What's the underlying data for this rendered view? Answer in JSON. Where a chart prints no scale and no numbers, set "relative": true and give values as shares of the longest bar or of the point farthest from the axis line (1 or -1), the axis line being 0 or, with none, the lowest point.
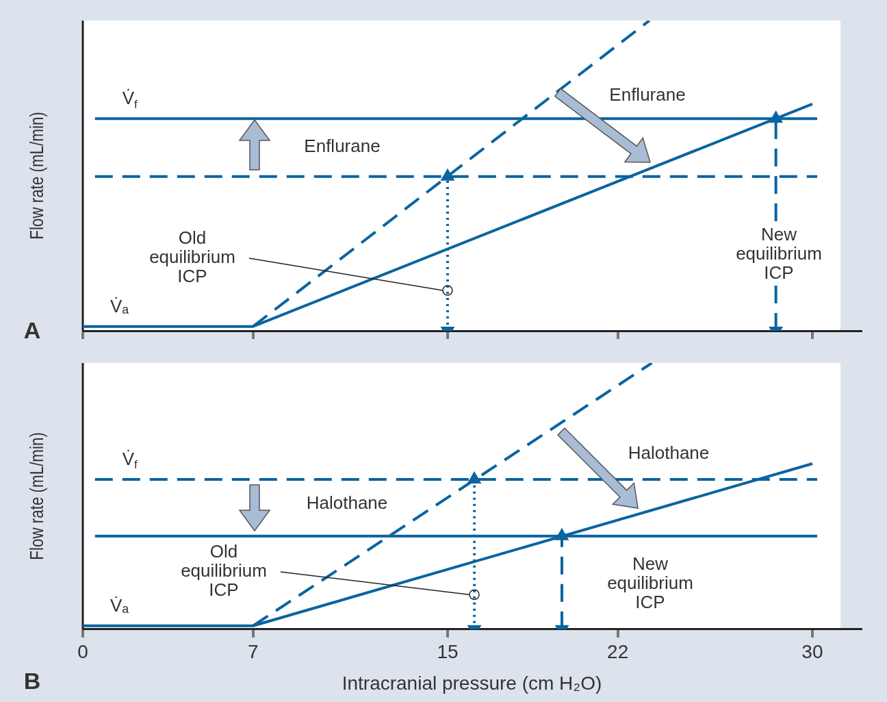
{
  "chart_data": [
    {
      "type": "line",
      "title": "A",
      "ylabel": "Flow rate (mL/min)",
      "relative": true,
      "xlim": [
        0,
        32
      ],
      "xticks": [
        0,
        7,
        15,
        22,
        30
      ],
      "tick_labels": false,
      "legend": false,
      "grid": false,
      "marker": "none",
      "series": [
        {
          "name": "V̇ₐ",
          "color": "#0a64a0",
          "x": [
            0,
            7,
            30
          ],
          "values": [
            0.014,
            0.014,
            0.731
          ],
          "line_style": "solid"
        },
        {
          "name": "V̇$_{f}$",
          "color": "#0a64a0",
          "x": [
            0.5,
            30.2
          ],
          "values": [
            0.684,
            0.684
          ],
          "line_style": "solid"
        },
        {
          "color": "#0a64a0",
          "x": [
            0.5,
            30.2
          ],
          "values": [
            0.497,
            0.497
          ],
          "line_style": "dashed"
        },
        {
          "color": "#0a64a0",
          "x": [
            7,
            23.3
          ],
          "values": [
            0.014,
            1
          ],
          "line_style": "dashed"
        },
        {
          "color": "#0a64a0",
          "x": [
            15,
            15
          ],
          "values": [
            0,
            0.497
          ],
          "line_style": "dotted",
          "marker": "triangle"
        },
        {
          "color": "#0a64a0",
          "x": [
            28.5,
            28.5
          ],
          "values": [
            0,
            0.684
          ],
          "line_style": "dashed",
          "marker": "triangle"
        }
      ],
      "annotations": [
        "Enflurane",
        "Enflurane",
        {
          "text": "Old equilibrium ICP",
          "x": 15,
          "y": 0.13
        },
        "New equilibrium ICP"
      ]
    },
    {
      "type": "line",
      "title": "B",
      "ylabel": "Flow rate (mL/min)",
      "xlabel": "Intracranial pressure (cm H₂O)",
      "relative": true,
      "xlim": [
        0,
        32
      ],
      "xticks": [
        0,
        7,
        15,
        22,
        30
      ],
      "tick_labels": "x",
      "legend": false,
      "grid": false,
      "marker": "none",
      "series": [
        {
          "name": "V̇ₐ",
          "color": "#0a64a0",
          "x": [
            0,
            7,
            30
          ],
          "values": [
            0.013,
            0.013,
            0.622
          ],
          "line_style": "solid"
        },
        {
          "name": "V̇$_{f}$",
          "color": "#0a64a0",
          "x": [
            0.5,
            30.2
          ],
          "values": [
            0.563,
            0.563
          ],
          "line_style": "dashed"
        },
        {
          "color": "#0a64a0",
          "x": [
            0.5,
            30.2
          ],
          "values": [
            0.35,
            0.35
          ],
          "line_style": "solid"
        },
        {
          "color": "#0a64a0",
          "x": [
            7,
            23.4
          ],
          "values": [
            0.013,
            1
          ],
          "line_style": "dashed"
        },
        {
          "color": "#0a64a0",
          "x": [
            16.1,
            16.1
          ],
          "values": [
            0,
            0.563
          ],
          "line_style": "dotted",
          "marker": "triangle"
        },
        {
          "color": "#0a64a0",
          "x": [
            19.7,
            19.7
          ],
          "values": [
            0,
            0.35
          ],
          "line_style": "dashed",
          "marker": "triangle"
        }
      ],
      "annotations": [
        "Halothane",
        "Halothane",
        {
          "text": "Old equilibrium ICP",
          "x": 16.1,
          "y": 0.13
        },
        "New equilibrium ICP"
      ]
    }
  ]
}
